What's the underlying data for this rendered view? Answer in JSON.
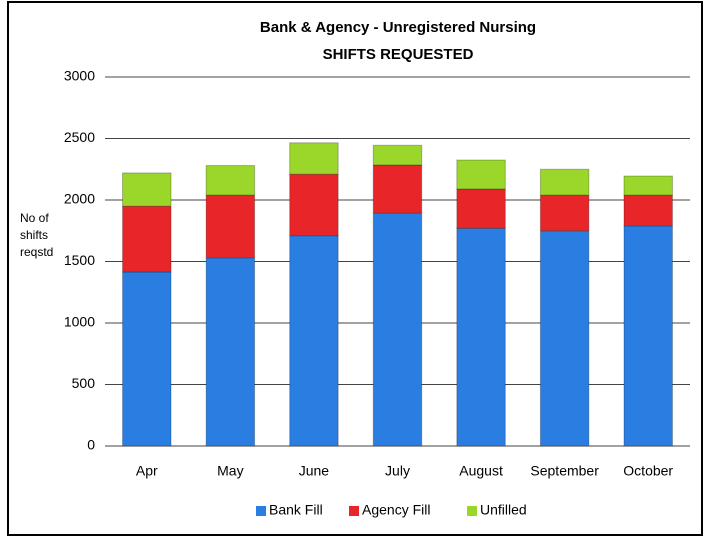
{
  "chart_data": {
    "type": "stacked_bar",
    "title": "Bank & Agency - Unregistered Nursing",
    "subtitle": "SHIFTS REQUESTED",
    "y_label": "No of shifts reqstd",
    "categories": [
      "Apr",
      "May",
      "June",
      "July",
      "August",
      "September",
      "October"
    ],
    "series": [
      {
        "name": "Bank Fill",
        "color": "#2a7de1",
        "values": [
          1415,
          1530,
          1710,
          1895,
          1770,
          1750,
          1790
        ]
      },
      {
        "name": "Agency Fill",
        "color": "#e8262a",
        "values": [
          535,
          510,
          500,
          390,
          320,
          290,
          250
        ]
      },
      {
        "name": "Unfilled",
        "color": "#9bd62a",
        "values": [
          270,
          240,
          255,
          160,
          235,
          210,
          155
        ]
      }
    ],
    "ylim": [
      0,
      3000
    ],
    "yticks": [
      0,
      500,
      1000,
      1500,
      2000,
      2500,
      3000
    ],
    "grid": true,
    "legend": "bottom"
  }
}
